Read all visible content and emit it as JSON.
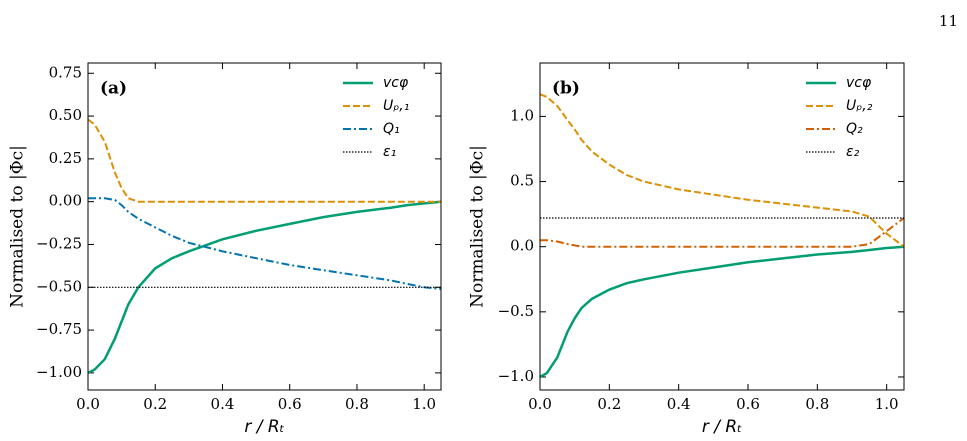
{
  "page_number": "11",
  "chart_data": [
    {
      "type": "line",
      "panel_label": "(a)",
      "x_label": "r / Rₜ",
      "y_label": "Normalised to |Φc|",
      "x": [
        0,
        0.02,
        0.05,
        0.08,
        0.1,
        0.12,
        0.15,
        0.2,
        0.25,
        0.3,
        0.4,
        0.5,
        0.6,
        0.7,
        0.8,
        0.9,
        0.95,
        1.0,
        1.05
      ],
      "series": [
        {
          "name": "vcφ",
          "color": "#029e73",
          "linestyle": "solid",
          "values": [
            -1.0,
            -0.98,
            -0.92,
            -0.8,
            -0.7,
            -0.6,
            -0.5,
            -0.39,
            -0.33,
            -0.29,
            -0.22,
            -0.17,
            -0.13,
            -0.09,
            -0.06,
            -0.035,
            -0.02,
            -0.01,
            0.0
          ]
        },
        {
          "name": "Uₚ,₁",
          "color": "#de8f05",
          "linestyle": "dashed",
          "values": [
            0.48,
            0.45,
            0.35,
            0.17,
            0.08,
            0.02,
            0.0,
            0.0,
            0.0,
            0.0,
            0.0,
            0.0,
            0.0,
            0.0,
            0.0,
            0.0,
            0.0,
            0.0,
            0.0
          ]
        },
        {
          "name": "Q₁",
          "color": "#0173b2",
          "linestyle": "dashdot",
          "values": [
            0.02,
            0.02,
            0.02,
            0.01,
            -0.02,
            -0.06,
            -0.1,
            -0.15,
            -0.2,
            -0.24,
            -0.29,
            -0.33,
            -0.37,
            -0.4,
            -0.43,
            -0.46,
            -0.48,
            -0.5,
            -0.51
          ]
        },
        {
          "name": "ε₁",
          "color": "#000000",
          "linestyle": "dotted",
          "values": [
            -0.5,
            -0.5,
            -0.5,
            -0.5,
            -0.5,
            -0.5,
            -0.5,
            -0.5,
            -0.5,
            -0.5,
            -0.5,
            -0.5,
            -0.5,
            -0.5,
            -0.5,
            -0.5,
            -0.5,
            -0.5,
            -0.5
          ]
        }
      ],
      "xlim": [
        0,
        1.05
      ],
      "ylim": [
        -1.1,
        0.81
      ],
      "xticks": [
        {
          "value": 0,
          "label": "0.0"
        },
        0.2,
        0.4,
        0.6,
        0.8,
        {
          "value": 1,
          "label": "1.0"
        }
      ],
      "yticks": [
        {
          "value": -1,
          "label": "−1.00"
        },
        {
          "value": -0.75,
          "label": "−0.75"
        },
        {
          "value": -0.5,
          "label": "−0.50"
        },
        {
          "value": -0.25,
          "label": "−0.25"
        },
        {
          "value": 0,
          "label": "0.00"
        },
        0.25,
        {
          "value": 0.5,
          "label": "0.50"
        },
        0.75
      ],
      "legend": "upper right"
    },
    {
      "type": "line",
      "panel_label": "(b)",
      "x_label": "r / Rₜ",
      "y_label": "Normalised to |Φc|",
      "x": [
        0,
        0.02,
        0.05,
        0.08,
        0.1,
        0.12,
        0.15,
        0.2,
        0.25,
        0.3,
        0.4,
        0.5,
        0.6,
        0.7,
        0.8,
        0.9,
        0.95,
        1.0,
        1.05
      ],
      "series": [
        {
          "name": "vcφ",
          "color": "#029e73",
          "linestyle": "solid",
          "values": [
            -1.0,
            -0.97,
            -0.85,
            -0.65,
            -0.55,
            -0.47,
            -0.4,
            -0.33,
            -0.28,
            -0.25,
            -0.2,
            -0.16,
            -0.12,
            -0.09,
            -0.06,
            -0.04,
            -0.025,
            -0.01,
            0.0
          ]
        },
        {
          "name": "Uₚ,₂",
          "color": "#de8f05",
          "linestyle": "dashed",
          "values": [
            1.17,
            1.15,
            1.08,
            0.97,
            0.9,
            0.82,
            0.73,
            0.63,
            0.55,
            0.5,
            0.44,
            0.4,
            0.36,
            0.33,
            0.3,
            0.27,
            0.23,
            0.1,
            0.0
          ]
        },
        {
          "name": "Q₂",
          "color": "#d55e00",
          "linestyle": "dashdot",
          "values": [
            0.05,
            0.05,
            0.04,
            0.02,
            0.01,
            0.0,
            0.0,
            0.0,
            0.0,
            0.0,
            0.0,
            0.0,
            0.0,
            0.0,
            0.0,
            0.0,
            0.02,
            0.12,
            0.22
          ]
        },
        {
          "name": "ε₂",
          "color": "#000000",
          "linestyle": "dotted",
          "values": [
            0.22,
            0.22,
            0.22,
            0.22,
            0.22,
            0.22,
            0.22,
            0.22,
            0.22,
            0.22,
            0.22,
            0.22,
            0.22,
            0.22,
            0.22,
            0.22,
            0.22,
            0.22,
            0.22
          ]
        }
      ],
      "xlim": [
        0,
        1.05
      ],
      "ylim": [
        -1.1,
        1.41
      ],
      "xticks": [
        {
          "value": 0,
          "label": "0.0"
        },
        0.2,
        0.4,
        0.6,
        0.8,
        {
          "value": 1,
          "label": "1.0"
        }
      ],
      "yticks": [
        {
          "value": -1,
          "label": "−1.0"
        },
        {
          "value": -0.5,
          "label": "−0.5"
        },
        {
          "value": 0,
          "label": "0.0"
        },
        0.5,
        {
          "value": 1,
          "label": "1.0"
        }
      ],
      "legend": "upper right"
    }
  ]
}
